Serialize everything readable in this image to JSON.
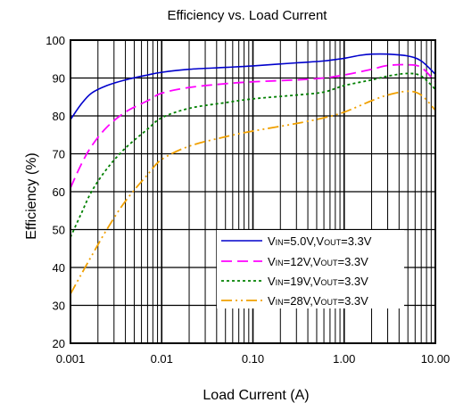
{
  "chart_data": {
    "type": "line",
    "title": "Efficiency vs. Load Current",
    "xlabel": "Load Current (A)",
    "ylabel": "Efficiency (%)",
    "x_scale": "log",
    "xlim": [
      0.001,
      10
    ],
    "ylim": [
      20,
      100
    ],
    "x_ticks": [
      {
        "value": 0.001,
        "label": "0.001"
      },
      {
        "value": 0.01,
        "label": "0.01"
      },
      {
        "value": 0.1,
        "label": "0.10"
      },
      {
        "value": 1,
        "label": "1.00"
      },
      {
        "value": 10,
        "label": "10.00"
      }
    ],
    "y_ticks": [
      20,
      30,
      40,
      50,
      60,
      70,
      80,
      90,
      100
    ],
    "grid": true,
    "legend_position": "bottom-right",
    "series": [
      {
        "name": "VIN=5.0V,VOUT=3.3V",
        "legend": {
          "v1": "V",
          "s1": "IN",
          "m1": "=5.0V,V",
          "s2": "OUT",
          "t": "=3.3V"
        },
        "color": "#0000cc",
        "dash": "",
        "x": [
          0.001,
          0.0013,
          0.0017,
          0.0025,
          0.004,
          0.007,
          0.01,
          0.02,
          0.05,
          0.1,
          0.3,
          0.6,
          1,
          1.5,
          2,
          3,
          5,
          7,
          10
        ],
        "y": [
          79,
          83,
          86,
          88,
          89.5,
          90.8,
          91.5,
          92.3,
          92.8,
          93.2,
          94,
          94.5,
          95.2,
          96,
          96.3,
          96.3,
          95.8,
          94.5,
          91
        ]
      },
      {
        "name": "VIN=12V,VOUT=3.3V",
        "legend": {
          "v1": "V",
          "s1": "IN",
          "m1": "=12V,V",
          "s2": "OUT",
          "t": "=3.3V"
        },
        "color": "#ff00ff",
        "dash": "12,6",
        "x": [
          0.001,
          0.0013,
          0.0017,
          0.0025,
          0.004,
          0.007,
          0.01,
          0.02,
          0.05,
          0.1,
          0.3,
          0.6,
          1,
          2,
          3,
          5,
          7,
          10
        ],
        "y": [
          61,
          67,
          72,
          77,
          81,
          84,
          86,
          87.5,
          88.5,
          89,
          89.5,
          90,
          90.8,
          92.3,
          93.3,
          93.5,
          92.8,
          89
        ]
      },
      {
        "name": "VIN=19V,VOUT=3.3V",
        "legend": {
          "v1": "V",
          "s1": "IN",
          "m1": "=19V,V",
          "s2": "OUT",
          "t": "=3.3V"
        },
        "color": "#008000",
        "dash": "3,3",
        "x": [
          0.001,
          0.0013,
          0.0017,
          0.0025,
          0.004,
          0.007,
          0.01,
          0.02,
          0.05,
          0.1,
          0.3,
          0.6,
          1,
          2,
          3,
          5,
          7,
          10
        ],
        "y": [
          48,
          54,
          60,
          66,
          71.5,
          76.5,
          79.5,
          82,
          83.5,
          84.5,
          85.5,
          86.3,
          88,
          89.5,
          90.5,
          91.2,
          90.5,
          87
        ]
      },
      {
        "name": "VIN=28V,VOUT=3.3V",
        "legend": {
          "v1": "V",
          "s1": "IN",
          "m1": "=28V,V",
          "s2": "OUT",
          "t": "=3.3V"
        },
        "color": "#f0a000",
        "dash": "12,4,2,4,2,4",
        "x": [
          0.001,
          0.0013,
          0.0017,
          0.0025,
          0.004,
          0.007,
          0.01,
          0.02,
          0.05,
          0.1,
          0.3,
          0.6,
          1,
          2,
          3,
          5,
          7,
          10
        ],
        "y": [
          33,
          38,
          43,
          50,
          57.5,
          64.5,
          68.5,
          72,
          74.5,
          76,
          78,
          79.5,
          81,
          84,
          85.5,
          86.5,
          85.5,
          81.5
        ]
      }
    ]
  }
}
